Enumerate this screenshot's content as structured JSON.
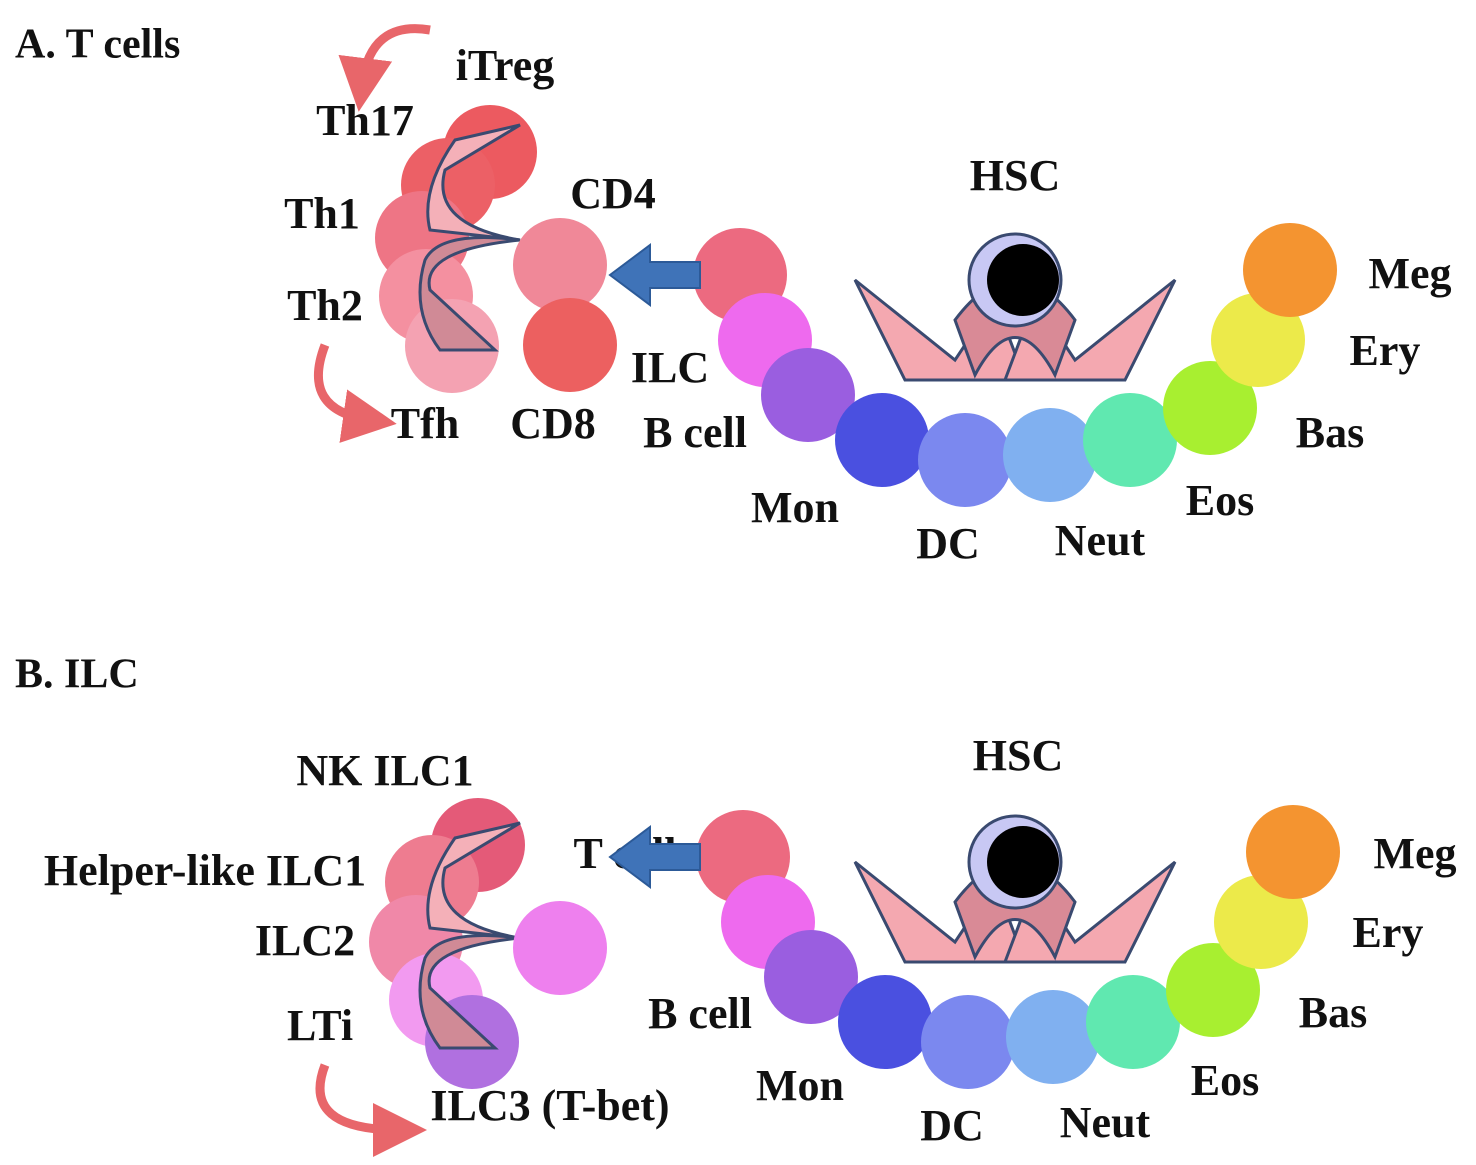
{
  "panels": [
    {
      "title": "A. T cells",
      "hsc": "HSC",
      "lineage": [
        "ILC",
        "B cell",
        "Mon",
        "DC",
        "Neut",
        "Eos",
        "Bas",
        "Ery",
        "Meg"
      ],
      "subsets": [
        "iTreg",
        "Th17",
        "Th1",
        "Th2",
        "Tfh"
      ],
      "branches": [
        "CD4",
        "CD8"
      ]
    },
    {
      "title": "B. ILC",
      "hsc": "HSC",
      "lineage": [
        "T cell",
        "B cell",
        "Mon",
        "DC",
        "Neut",
        "Eos",
        "Bas",
        "Ery",
        "Meg"
      ],
      "subsets": [
        "NK ILC1",
        "Helper-like ILC1",
        "ILC2",
        "LTi",
        "ILC3 (T-bet)"
      ]
    }
  ]
}
